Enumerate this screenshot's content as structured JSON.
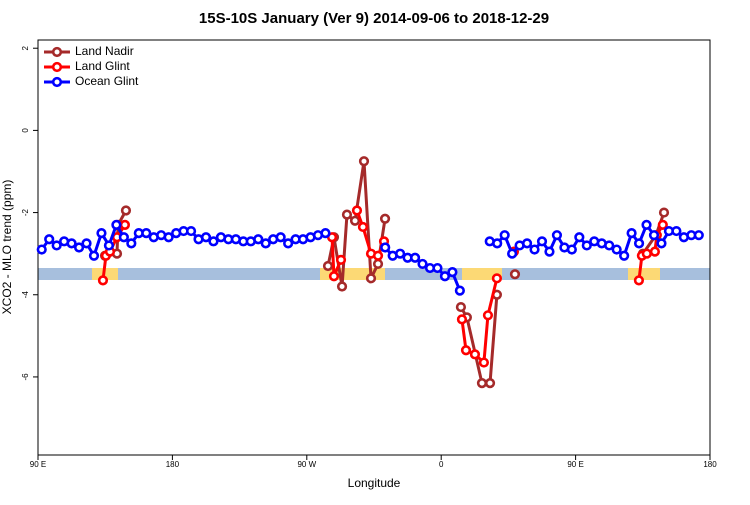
{
  "chart_data": {
    "type": "line",
    "title": "15S-10S January (Ver 9)   2014-09-06 to 2018-12-29",
    "x_label": "Longitude",
    "y_label": "XCO2 - MLO trend (ppm)",
    "xlim": [
      90,
      540
    ],
    "ylim": [
      -7.9,
      2.2
    ],
    "xticks": [
      {
        "value": 90,
        "label": "90 E"
      },
      180,
      {
        "value": 270,
        "label": "90 W"
      },
      {
        "value": 360,
        "label": "0"
      },
      {
        "value": 450,
        "label": "90 E"
      },
      {
        "value": 540,
        "label": "180"
      }
    ],
    "yticks": [
      2,
      0,
      -2,
      -4,
      -6
    ],
    "legend": "top-left",
    "series": [
      {
        "name": "Land Nadir",
        "color": "#a52a2a",
        "x": [
          134.9,
          138.2,
          142.9,
          143.6,
          148.9,
          null,
          284.2,
          288.2,
          293.6,
          296.9,
          302.3,
          308.3,
          313,
          317.7,
          322.4,
          null,
          373.2,
          377.2,
          387.3,
          392.7,
          397.3,
          null,
          409.4,
          null,
          495.1,
          503.8,
          509.2
        ],
        "values": [
          -3.05,
          -2.95,
          -3.0,
          -2.3,
          -1.95,
          null,
          -3.3,
          -2.6,
          -3.8,
          -2.05,
          -2.2,
          -0.75,
          -3.6,
          -3.25,
          -2.15,
          null,
          -4.3,
          -4.55,
          -6.15,
          -6.15,
          -4.0,
          null,
          -3.5,
          null,
          -3.0,
          -2.55,
          -2.0
        ]
      },
      {
        "name": "Land Glint",
        "color": "#ff0000",
        "x": [
          133.5,
          135.5,
          138.2,
          142.9,
          148.2,
          null,
          286.9,
          288.2,
          292.9,
          null,
          303.6,
          307.6,
          313,
          317.7,
          321.7,
          null,
          373.9,
          376.6,
          382.6,
          388.6,
          391.3,
          397.3,
          null,
          408.7,
          null,
          492.4,
          494.4,
          497.7,
          503.1,
          504.4,
          508.4
        ],
        "values": [
          -3.65,
          -3.05,
          -2.95,
          -2.6,
          -2.3,
          null,
          -2.6,
          -3.55,
          -3.15,
          null,
          -1.95,
          -2.35,
          -3.0,
          -3.05,
          -2.7,
          null,
          -4.6,
          -5.35,
          -5.45,
          -5.65,
          -4.5,
          -3.6,
          null,
          -2.95,
          null,
          -3.65,
          -3.05,
          -3.0,
          -2.95,
          -2.55,
          -2.3
        ]
      },
      {
        "name": "Ocean Glint",
        "color": "#0000ff",
        "x": [
          92.5,
          97.5,
          102.5,
          107.5,
          112.5,
          117.5,
          122.5,
          127.5,
          132.5,
          137.5,
          142.5,
          147.5,
          152.5,
          157.5,
          162.5,
          167.5,
          172.5,
          177.5,
          182.5,
          187.5,
          192.5,
          197.5,
          202.5,
          207.5,
          212.5,
          217.5,
          222.5,
          227.5,
          232.5,
          237.5,
          242.5,
          247.5,
          252.5,
          257.5,
          262.5,
          267.5,
          272.5,
          277.5,
          282.5,
          null,
          322.5,
          327.5,
          332.5,
          337.5,
          342.5,
          347.5,
          352.5,
          357.5,
          362.5,
          367.5,
          372.5,
          null,
          392.5,
          397.5,
          402.5,
          407.5,
          412.5,
          417.5,
          422.5,
          427.5,
          432.5,
          437.5,
          442.5,
          447.5,
          452.5,
          457.5,
          462.5,
          467.5,
          472.5,
          477.5,
          482.5,
          487.5,
          492.5,
          497.5,
          502.5,
          507.5,
          512.5,
          517.5,
          522.5,
          527.5,
          532.5
        ],
        "values": [
          -2.9,
          -2.65,
          -2.8,
          -2.7,
          -2.75,
          -2.85,
          -2.75,
          -3.05,
          -2.5,
          -2.8,
          -2.3,
          -2.6,
          -2.75,
          -2.5,
          -2.5,
          -2.6,
          -2.55,
          -2.6,
          -2.5,
          -2.45,
          -2.45,
          -2.65,
          -2.6,
          -2.7,
          -2.6,
          -2.65,
          -2.65,
          -2.7,
          -2.7,
          -2.65,
          -2.75,
          -2.65,
          -2.6,
          -2.75,
          -2.65,
          -2.65,
          -2.6,
          -2.55,
          -2.5,
          null,
          -2.85,
          -3.05,
          -3.0,
          -3.1,
          -3.1,
          -3.25,
          -3.35,
          -3.35,
          -3.55,
          -3.45,
          -3.9,
          null,
          -2.7,
          -2.75,
          -2.55,
          -3.0,
          -2.8,
          -2.75,
          -2.9,
          -2.7,
          -2.95,
          -2.55,
          -2.85,
          -2.9,
          -2.6,
          -2.8,
          -2.7,
          -2.75,
          -2.8,
          -2.9,
          -3.05,
          -2.5,
          -2.75,
          -2.3,
          -2.55,
          -2.75,
          -2.45,
          -2.45,
          -2.6,
          -2.55,
          -2.55
        ]
      }
    ]
  }
}
